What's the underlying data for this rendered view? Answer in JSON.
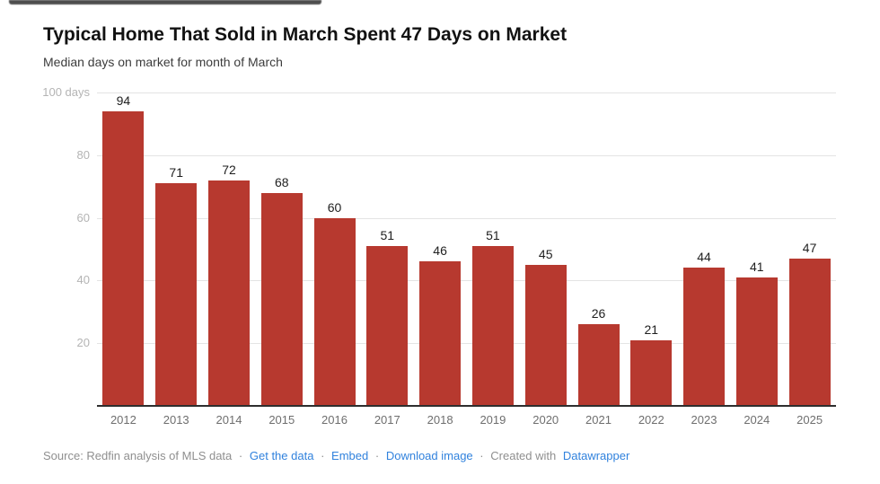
{
  "chart_data": {
    "type": "bar",
    "title": "Typical Home That Sold in March Spent 47 Days on Market",
    "subtitle": "Median days on market for month of March",
    "categories": [
      "2012",
      "2013",
      "2014",
      "2015",
      "2016",
      "2017",
      "2018",
      "2019",
      "2020",
      "2021",
      "2022",
      "2023",
      "2024",
      "2025"
    ],
    "values": [
      94,
      71,
      72,
      68,
      60,
      51,
      46,
      51,
      45,
      26,
      21,
      44,
      41,
      47
    ],
    "xlabel": "",
    "ylabel": "days",
    "ylim": [
      0,
      100
    ],
    "grid": true,
    "legend": "none",
    "value_labels": true,
    "bar_color": "#b7392f",
    "y_axis": {
      "max": 100,
      "ticks": [
        {
          "value": 100,
          "label": "100 days"
        },
        {
          "value": 80,
          "label": "80"
        },
        {
          "value": 60,
          "label": "60"
        },
        {
          "value": 40,
          "label": "40"
        },
        {
          "value": 20,
          "label": "20"
        }
      ]
    }
  },
  "footer": {
    "source_text": "Source: Redfin analysis of MLS data",
    "separator": "·",
    "links": [
      "Get the data",
      "Embed",
      "Download image"
    ],
    "created_with": "Created with",
    "brand_link": "Datawrapper"
  },
  "colors": {
    "link": "#3182dd",
    "top_strip": "#3f3f3f",
    "grid": "#e4e4e4",
    "axis_line": "#2e2e2e",
    "title_text": "#121212",
    "subtitle_text": "#3c3c3c",
    "tick_text": "#b4b4b4",
    "year_text": "#6e6e6e",
    "value_text": "#1f1f1f",
    "footer_text": "#8f8f8f"
  }
}
